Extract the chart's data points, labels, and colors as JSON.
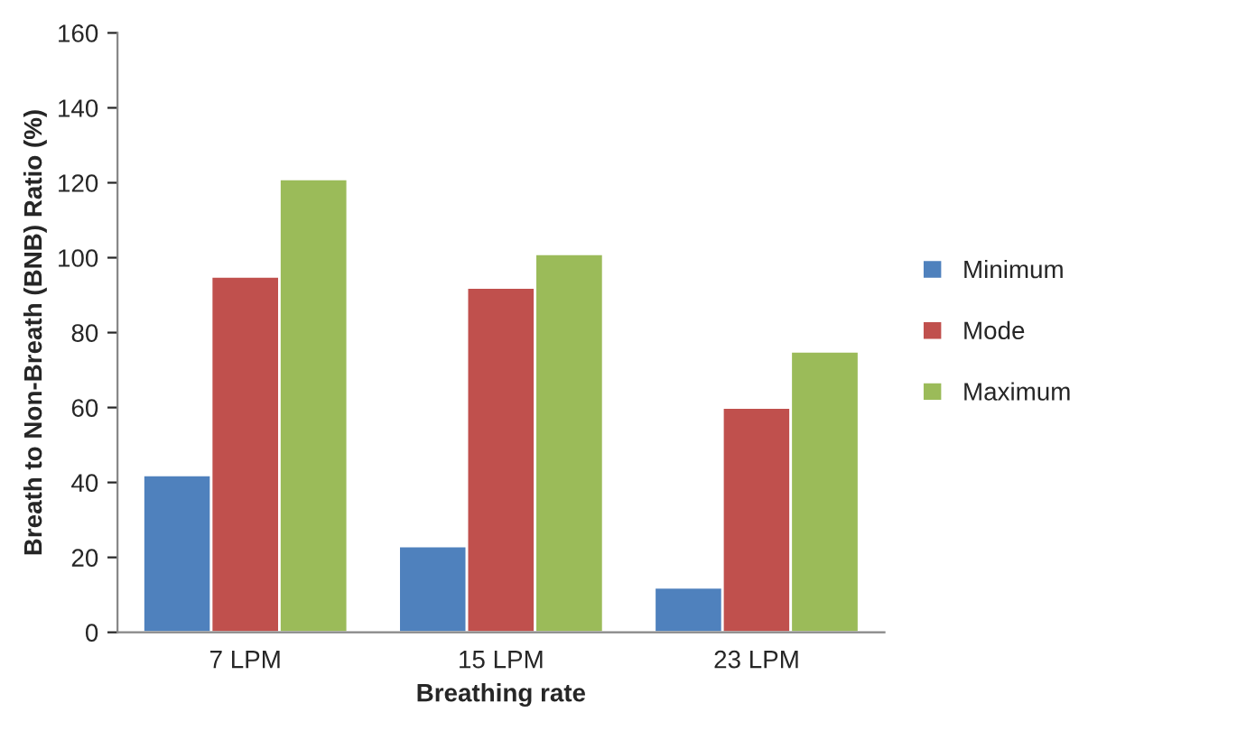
{
  "chart_data": {
    "type": "bar",
    "xlabel": "Breathing rate",
    "ylabel": "Breath to Non-Breath (BNB) Ratio (%)",
    "categories": [
      "7 LPM",
      "15 LPM",
      "23 LPM"
    ],
    "series": [
      {
        "name": "Minimum",
        "color": "#4f81bd",
        "values": [
          42,
          23,
          12
        ]
      },
      {
        "name": "Mode",
        "color": "#c0504d",
        "values": [
          95,
          92,
          60
        ]
      },
      {
        "name": "Maximum",
        "color": "#9bbb59",
        "values": [
          121,
          101,
          75
        ]
      }
    ],
    "ylim": [
      0,
      160
    ],
    "yticks": [
      0,
      20,
      40,
      60,
      80,
      100,
      120,
      140,
      160
    ],
    "grid": false,
    "legend": "right"
  }
}
